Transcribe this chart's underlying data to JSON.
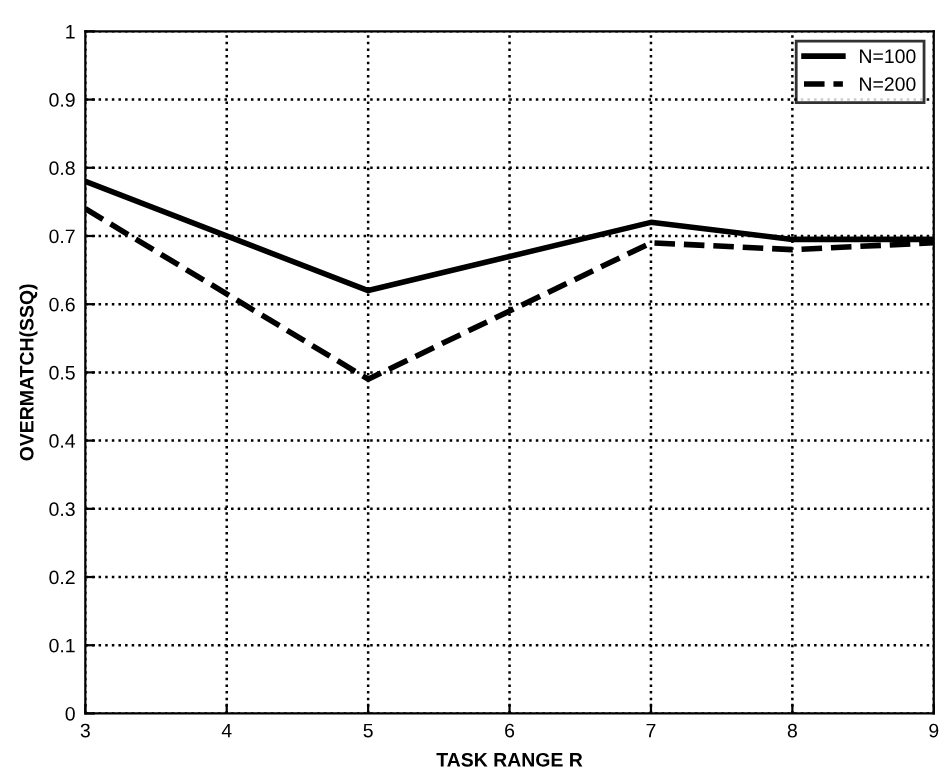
{
  "chart_data": {
    "type": "line",
    "xlabel": "TASK RANGE R",
    "ylabel": "OVERMATCH(SSQ)",
    "x": [
      3,
      5,
      7,
      8,
      9
    ],
    "series": [
      {
        "name": "N=100",
        "color": "#000000",
        "values": [
          0.78,
          0.62,
          0.72,
          0.695,
          0.695
        ],
        "line_style": "solid"
      },
      {
        "name": "N=200",
        "color": "#000000",
        "values": [
          0.74,
          0.49,
          0.69,
          0.68,
          0.69
        ],
        "line_style": "dashed"
      }
    ],
    "xlim": [
      3,
      9
    ],
    "xticks": [
      3,
      4,
      5,
      6,
      7,
      8,
      9
    ],
    "ylim": [
      0,
      1
    ],
    "yticks": [
      0,
      0.1,
      0.2,
      0.3,
      0.4,
      0.5,
      0.6,
      0.7,
      0.8,
      0.9,
      1
    ],
    "grid": true,
    "legend": "top right",
    "marker": "none"
  }
}
